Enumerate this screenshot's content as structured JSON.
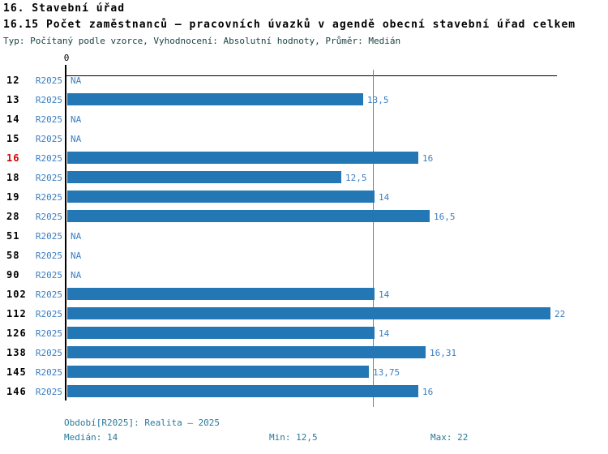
{
  "header": {
    "title": "16. Stavební úřad",
    "subtitle": "16.15 Počet zaměstnanců – pracovních úvazků v agendě obecní stavební úřad celkem",
    "meta": "Typ: Počítaný podle vzorce, Vyhodnocení: Absolutní hodnoty, Průměr: Medián"
  },
  "chart_data": {
    "type": "bar",
    "orientation": "horizontal",
    "categories": [
      "12",
      "13",
      "14",
      "15",
      "16",
      "18",
      "19",
      "28",
      "51",
      "58",
      "90",
      "102",
      "112",
      "126",
      "138",
      "145",
      "146"
    ],
    "period_label": "R2025",
    "values": [
      null,
      13.5,
      null,
      null,
      16,
      12.5,
      14,
      16.5,
      null,
      null,
      null,
      14,
      22,
      14,
      16.31,
      13.75,
      16
    ],
    "value_labels": [
      "NA",
      "13,5",
      "NA",
      "NA",
      "16",
      "12,5",
      "14",
      "16,5",
      "NA",
      "NA",
      "NA",
      "14",
      "22",
      "14",
      "16,31",
      "13,75",
      "16"
    ],
    "na_label": "NA",
    "highlighted_category": "16",
    "zero_tick_label": "0",
    "median_line_value": 14,
    "xlim": [
      0,
      22.4
    ],
    "grid": false,
    "legend": "none",
    "bar_color": "#2277b4",
    "label_color": "#3a7ec2",
    "median_line_color": "#4d87c4",
    "highlight_color": "#d40000"
  },
  "footer": {
    "period_info": "Období[R2025]: Realita – 2025",
    "median": "Medián: 14",
    "min": "Min: 12,5",
    "max": "Max: 22"
  }
}
